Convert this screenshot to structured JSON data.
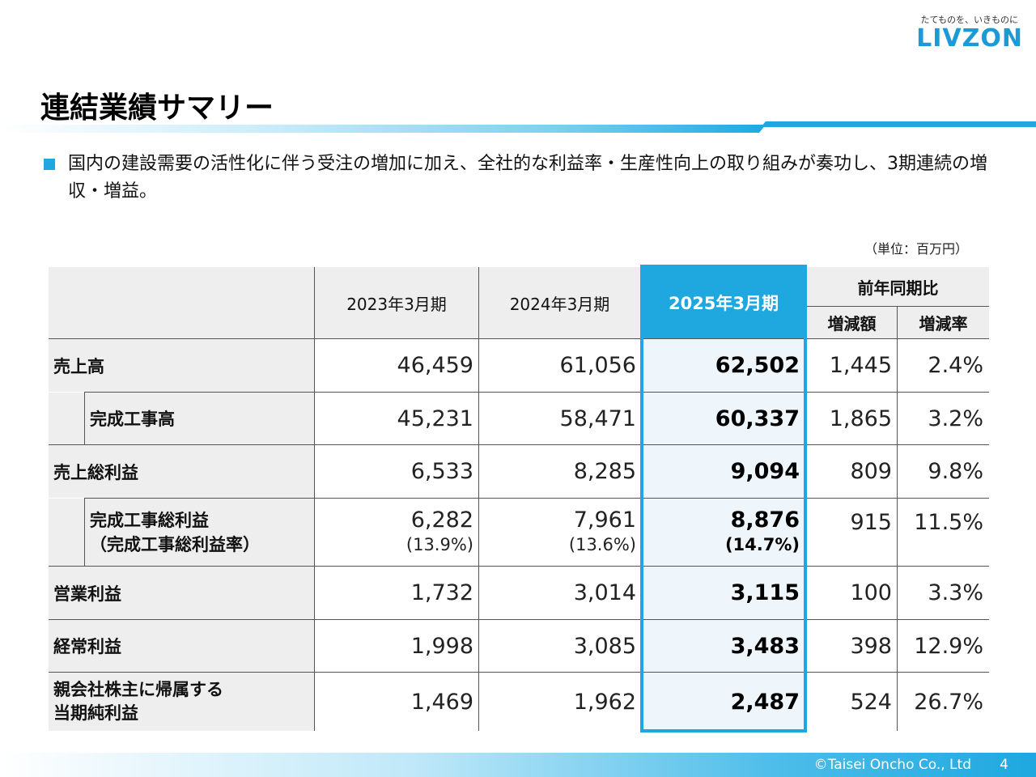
{
  "brand": {
    "tagline": "たてものを、いきものに",
    "logo": "LIVZON",
    "color": "#1ea8df"
  },
  "title": "連結業績サマリー",
  "summary": "国内の建設需要の活性化に伴う受注の増加に加え、全社的な利益率・生産性向上の取り組みが奏功し、3期連続の増収・増益。",
  "unit": "（単位：百万円）",
  "table": {
    "headers": {
      "fy2023": "2023年3月期",
      "fy2024": "2024年3月期",
      "fy2025": "2025年3月期",
      "yoy": "前年同期比",
      "change_amount": "増減額",
      "change_rate": "増減率"
    },
    "rows": [
      {
        "label": "売上高",
        "v2023": "46,459",
        "v2024": "61,056",
        "v2025": "62,502",
        "diff": "1,445",
        "rate": "2.4%"
      },
      {
        "label": "完成工事高",
        "v2023": "45,231",
        "v2024": "58,471",
        "v2025": "60,337",
        "diff": "1,865",
        "rate": "3.2%"
      },
      {
        "label": "売上総利益",
        "v2023": "6,533",
        "v2024": "8,285",
        "v2025": "9,094",
        "diff": "809",
        "rate": "9.8%"
      },
      {
        "label": "完成工事総利益",
        "label2": "（完成工事総利益率）",
        "v2023": "6,282",
        "p2023": "(13.9%)",
        "v2024": "7,961",
        "p2024": "(13.6%)",
        "v2025": "8,876",
        "p2025": "(14.7%)",
        "diff": "915",
        "rate": "11.5%"
      },
      {
        "label": "営業利益",
        "v2023": "1,732",
        "v2024": "3,014",
        "v2025": "3,115",
        "diff": "100",
        "rate": "3.3%"
      },
      {
        "label": "経常利益",
        "v2023": "1,998",
        "v2024": "3,085",
        "v2025": "3,483",
        "diff": "398",
        "rate": "12.9%"
      },
      {
        "label": "親会社株主に帰属する",
        "label2": "当期純利益",
        "v2023": "1,469",
        "v2024": "1,962",
        "v2025": "2,487",
        "diff": "524",
        "rate": "26.7%"
      }
    ]
  },
  "footer": {
    "copyright": "©Taisei Oncho Co., Ltd",
    "page": "4"
  }
}
